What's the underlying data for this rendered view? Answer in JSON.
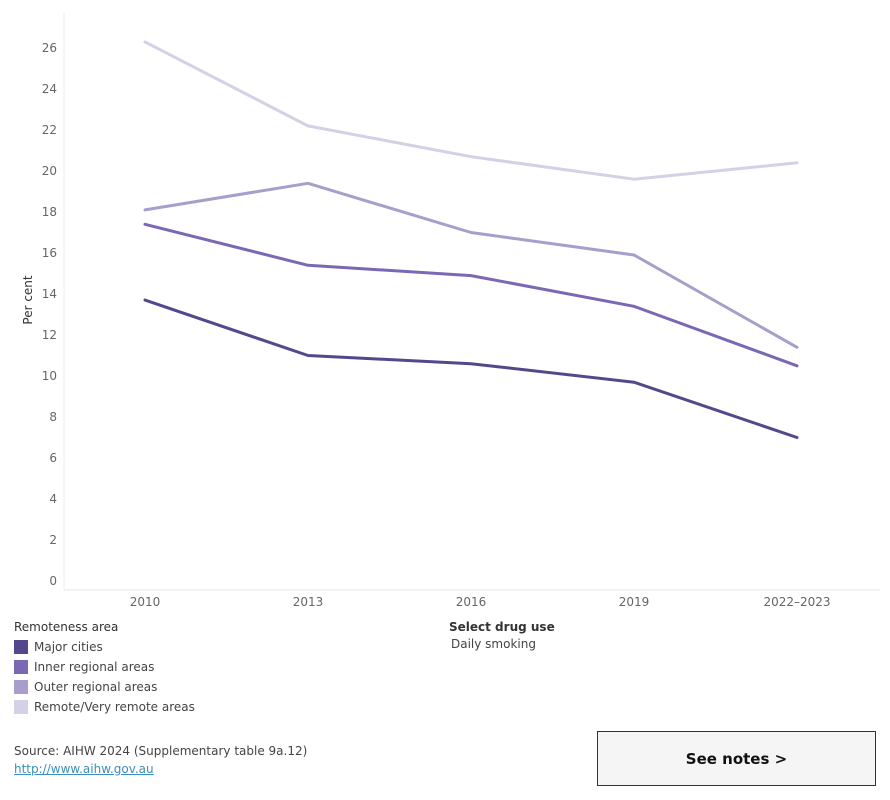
{
  "chart_data": {
    "type": "line",
    "ylabel": "Per cent",
    "xlabel": "",
    "ylim": [
      0,
      27
    ],
    "yticks": [
      0,
      2,
      4,
      6,
      8,
      10,
      12,
      14,
      16,
      18,
      20,
      22,
      24,
      26
    ],
    "categories": [
      "2010",
      "2013",
      "2016",
      "2019",
      "2022–2023"
    ],
    "grid": false,
    "series": [
      {
        "name": "Major cities",
        "color": "#55478c",
        "values": [
          13.7,
          11.0,
          10.6,
          9.7,
          7.0
        ]
      },
      {
        "name": "Inner regional areas",
        "color": "#7b68b4",
        "values": [
          17.4,
          15.4,
          14.9,
          13.4,
          10.5
        ]
      },
      {
        "name": "Outer regional areas",
        "color": "#a99dcb",
        "values": [
          18.1,
          19.4,
          17.0,
          15.9,
          11.4
        ]
      },
      {
        "name": "Remote/Very remote areas",
        "color": "#d4d0e6",
        "values": [
          26.3,
          22.2,
          20.7,
          19.6,
          20.4
        ]
      }
    ]
  },
  "legend": {
    "title": "Remoteness area",
    "items": [
      {
        "label": "Major cities",
        "color": "#55478c"
      },
      {
        "label": "Inner regional areas",
        "color": "#7b68b4"
      },
      {
        "label": "Outer regional areas",
        "color": "#a99dcb"
      },
      {
        "label": "Remote/Very remote areas",
        "color": "#d4d0e6"
      }
    ]
  },
  "filter": {
    "title": "Select drug use",
    "value": "Daily smoking"
  },
  "source": {
    "text": "Source: AIHW 2024 (Supplementary table 9a.12)",
    "link": "http://www.aihw.gov.au"
  },
  "notes_button": {
    "label": "See notes >"
  }
}
